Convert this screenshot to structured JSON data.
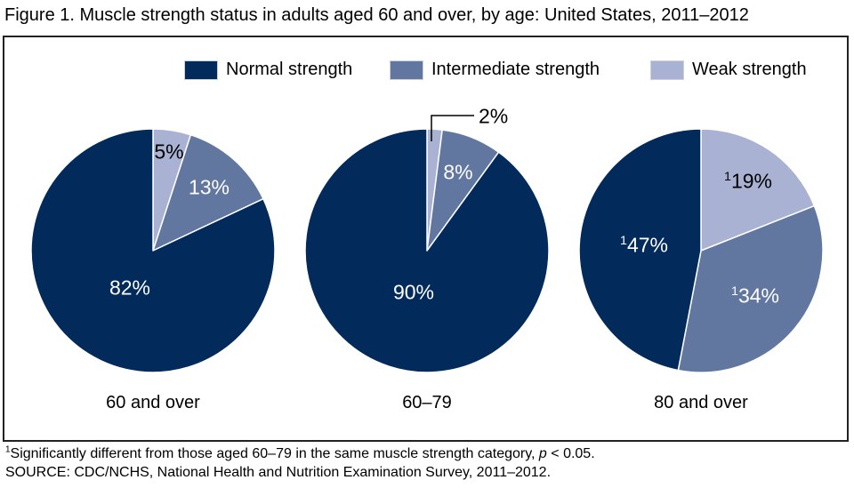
{
  "header": {
    "title": "Figure 1. Muscle strength status in adults aged 60 and over, by age: United States, 2011–2012"
  },
  "legend": {
    "items": [
      {
        "label": "Normal strength",
        "color": "#022b5c"
      },
      {
        "label": "Intermediate strength",
        "color": "#62779f"
      },
      {
        "label": "Weak strength",
        "color": "#a9b2d2"
      }
    ]
  },
  "chart_data": [
    {
      "type": "pie",
      "title": "60 and over",
      "start_angle_deg": 0,
      "direction": "clockwise",
      "slices": [
        {
          "category": "Weak strength",
          "value": 5,
          "label": "5%",
          "sup": "",
          "color": "#a9b2d2",
          "label_color": "#000000"
        },
        {
          "category": "Intermediate strength",
          "value": 13,
          "label": "13%",
          "sup": "",
          "color": "#62779f",
          "label_color": "#ffffff"
        },
        {
          "category": "Normal strength",
          "value": 82,
          "label": "82%",
          "sup": "",
          "color": "#022b5c",
          "label_color": "#ffffff"
        }
      ]
    },
    {
      "type": "pie",
      "title": "60–79",
      "start_angle_deg": 0,
      "direction": "clockwise",
      "slices": [
        {
          "category": "Weak strength",
          "value": 2,
          "label": "2%",
          "sup": "",
          "color": "#a9b2d2",
          "label_color": "#000000",
          "callout": true
        },
        {
          "category": "Intermediate strength",
          "value": 8,
          "label": "8%",
          "sup": "",
          "color": "#62779f",
          "label_color": "#ffffff"
        },
        {
          "category": "Normal strength",
          "value": 90,
          "label": "90%",
          "sup": "",
          "color": "#022b5c",
          "label_color": "#ffffff"
        }
      ]
    },
    {
      "type": "pie",
      "title": "80 and over",
      "start_angle_deg": 0,
      "direction": "clockwise",
      "slices": [
        {
          "category": "Weak strength",
          "value": 19,
          "label": "19%",
          "sup": "1",
          "color": "#a9b2d2",
          "label_color": "#000000"
        },
        {
          "category": "Intermediate strength",
          "value": 34,
          "label": "34%",
          "sup": "1",
          "color": "#62779f",
          "label_color": "#ffffff"
        },
        {
          "category": "Normal strength",
          "value": 47,
          "label": "47%",
          "sup": "1",
          "color": "#022b5c",
          "label_color": "#ffffff"
        }
      ]
    }
  ],
  "footnotes": [
    {
      "segments": [
        {
          "t": "1",
          "sup": true
        },
        {
          "t": "Significantly different from those aged 60–79 in the same muscle strength category, "
        },
        {
          "t": "p",
          "italic": true
        },
        {
          "t": " < 0.05."
        }
      ]
    },
    {
      "segments": [
        {
          "t": "SOURCE: CDC/NCHS, National Health and Nutrition Examination Survey, 2011–2012."
        }
      ]
    }
  ]
}
